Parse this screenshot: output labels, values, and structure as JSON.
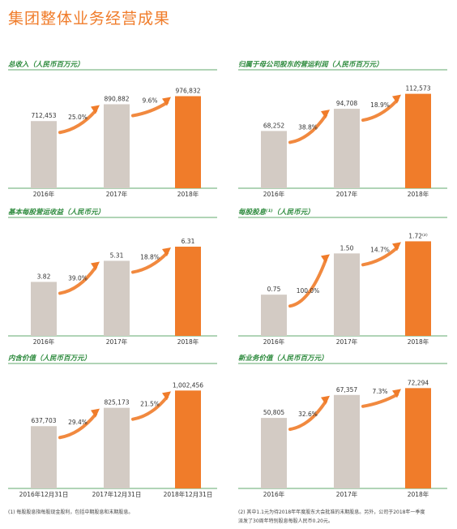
{
  "page": {
    "title": "集团整体业务经营成果"
  },
  "colors": {
    "accent": "#f07c2a",
    "bar_gray": "#d3cbc4",
    "bar_orange": "#f07c2a",
    "title_green": "#2e8b3e",
    "rule_green": "#2e8b3e"
  },
  "chart_data": [
    {
      "type": "bar",
      "title": "总收入（人民币百万元）",
      "categories": [
        "2016年",
        "2017年",
        "2018年"
      ],
      "values": [
        712453,
        890882,
        976832
      ],
      "value_labels": [
        "712,453",
        "890,882",
        "976,832"
      ],
      "growth": [
        "25.0%",
        "9.6%"
      ],
      "highlight_index": 2,
      "ylim": [
        0,
        1050000
      ]
    },
    {
      "type": "bar",
      "title": "归属于母公司股东的营运利润（人民币百万元）",
      "categories": [
        "2016年",
        "2017年",
        "2018年"
      ],
      "values": [
        68252,
        94708,
        112573
      ],
      "value_labels": [
        "68,252",
        "94,708",
        "112,573"
      ],
      "growth": [
        "38.8%",
        "18.9%"
      ],
      "highlight_index": 2,
      "ylim": [
        0,
        118000
      ]
    },
    {
      "type": "bar",
      "title": "基本每股营运收益（人民币元）",
      "categories": [
        "2016年",
        "2017年",
        "2018年"
      ],
      "values": [
        3.82,
        5.31,
        6.31
      ],
      "value_labels": [
        "3.82",
        "5.31",
        "6.31"
      ],
      "growth": [
        "39.0%",
        "18.8%"
      ],
      "highlight_index": 2,
      "ylim": [
        0,
        7.0
      ]
    },
    {
      "type": "bar",
      "title": "每股股息⁽¹⁾（人民币元）",
      "categories": [
        "2016年",
        "2017年",
        "2018年"
      ],
      "values": [
        0.75,
        1.5,
        1.72
      ],
      "value_labels": [
        "0.75",
        "1.50",
        "1.72⁽²⁾"
      ],
      "growth": [
        "100.0%",
        "14.7%"
      ],
      "highlight_index": 2,
      "ylim": [
        0,
        1.8
      ]
    },
    {
      "type": "bar",
      "title": "内含价值（人民币百万元）",
      "categories": [
        "2016年12月31日",
        "2017年12月31日",
        "2018年12月31日"
      ],
      "values": [
        637703,
        825173,
        1002456
      ],
      "value_labels": [
        "637,703",
        "825,173",
        "1,002,456"
      ],
      "growth": [
        "29.4%",
        "21.5%"
      ],
      "highlight_index": 2,
      "ylim": [
        0,
        1080000
      ]
    },
    {
      "type": "bar",
      "title": "新业务价值（人民币百万元）",
      "categories": [
        "2016年",
        "2017年",
        "2018年"
      ],
      "values": [
        50805,
        67357,
        72294
      ],
      "value_labels": [
        "50,805",
        "67,357",
        "72,294"
      ],
      "growth": [
        "32.6%",
        "7.3%"
      ],
      "highlight_index": 2,
      "ylim": [
        0,
        76000
      ]
    }
  ],
  "footnotes": [
    "(1)    每股股息指每股现金股利，包括中期股息和末期股息。",
    "(2)    其中1.1元为待2018年年度股东大会批准的末期股息。另外，公司于2018年一季度",
    "       派发了30周年特别股息每股人民币0.20元。"
  ]
}
